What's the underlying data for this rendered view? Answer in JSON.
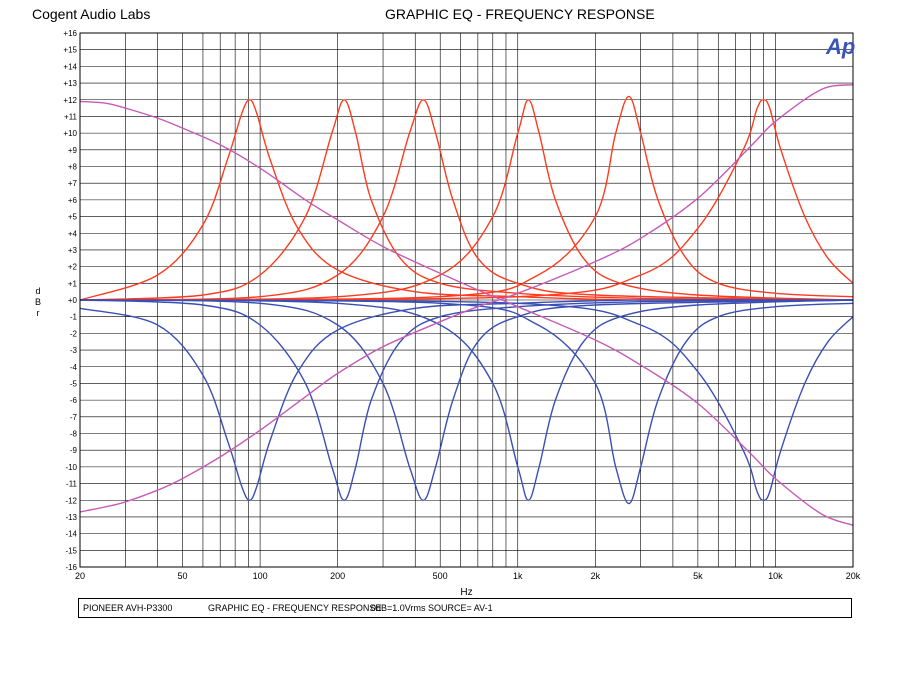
{
  "header": {
    "brand": "Cogent Audio Labs",
    "title": "GRAPHIC EQ  -  FREQUENCY RESPONSE",
    "logo_text": "Ap"
  },
  "footer": {
    "model": "PIONEER AVH-P3300",
    "test": "GRAPHIC EQ - FREQUENCY RESPONSE",
    "reference": "0dB=1.0Vrms",
    "source": "SOURCE= AV-1"
  },
  "colors": {
    "boost": "#ff3b1f",
    "cut": "#3a4fb5",
    "shelf": "#c85ab8",
    "grid": "#000000",
    "logo": "#3a54b8"
  },
  "chart_data": {
    "type": "line",
    "title": "GRAPHIC EQ  -  FREQUENCY RESPONSE",
    "xlabel": "Hz",
    "ylabel": "dBr",
    "x_scale": "log",
    "xlim": [
      20,
      20000
    ],
    "ylim": [
      -16,
      16
    ],
    "x_tick_labels": [
      {
        "value": 20,
        "label": "20"
      },
      {
        "value": 50,
        "label": "50"
      },
      {
        "value": 100,
        "label": "100"
      },
      {
        "value": 200,
        "label": "200"
      },
      {
        "value": 500,
        "label": "500"
      },
      {
        "value": 1000,
        "label": "1k"
      },
      {
        "value": 2000,
        "label": "2k"
      },
      {
        "value": 5000,
        "label": "5k"
      },
      {
        "value": 10000,
        "label": "10k"
      },
      {
        "value": 20000,
        "label": "20k"
      }
    ],
    "y_tick_labels": [
      "+16",
      "+15",
      "+14",
      "+13",
      "+12",
      "+11",
      "+10",
      "+9",
      "+8",
      "+7",
      "+6",
      "+5",
      "+4",
      "+3",
      "+2",
      "+1",
      "+0",
      "-1",
      "-2",
      "-3",
      "-4",
      "-5",
      "-6",
      "-7",
      "-8",
      "-9",
      "-10",
      "-11",
      "-12",
      "-13",
      "-14",
      "-15",
      "-16"
    ],
    "grid": true,
    "legend": "none",
    "series": [
      {
        "color": "boost",
        "x": [
          20,
          40,
          60,
          75,
          85,
          91,
          97,
          110,
          140,
          200,
          400,
          1000,
          3000,
          20000
        ],
        "y": [
          0,
          1.5,
          4.5,
          8.5,
          11.2,
          12,
          11.2,
          8.3,
          4.3,
          1.8,
          0.5,
          0.2,
          0,
          0
        ]
      },
      {
        "color": "boost",
        "x": [
          20,
          60,
          100,
          150,
          190,
          212,
          235,
          270,
          350,
          500,
          1000,
          3000,
          20000
        ],
        "y": [
          0,
          0.3,
          1.5,
          5,
          10,
          12,
          10,
          6,
          2.5,
          1,
          0.4,
          0.1,
          0
        ]
      },
      {
        "color": "boost",
        "x": [
          20,
          100,
          200,
          300,
          380,
          430,
          480,
          560,
          700,
          1000,
          2000,
          20000
        ],
        "y": [
          0,
          0.2,
          1.5,
          5,
          10,
          12,
          10,
          6,
          2.5,
          1,
          0.3,
          0
        ]
      },
      {
        "color": "boost",
        "x": [
          20,
          200,
          500,
          800,
          1000,
          1100,
          1210,
          1400,
          1800,
          2500,
          5000,
          20000
        ],
        "y": [
          0,
          0.2,
          1.5,
          5,
          10,
          12,
          10,
          6,
          2.5,
          1,
          0.3,
          0
        ]
      },
      {
        "color": "boost",
        "x": [
          20,
          500,
          1200,
          2000,
          2400,
          2700,
          3000,
          3500,
          4500,
          6000,
          10000,
          20000
        ],
        "y": [
          0,
          0.2,
          1.5,
          5,
          10,
          12.2,
          10,
          6,
          2.5,
          1,
          0.4,
          0.2
        ]
      },
      {
        "color": "boost",
        "x": [
          20,
          1000,
          3000,
          5000,
          7500,
          8500,
          9000,
          9500,
          10500,
          13000,
          16000,
          20000
        ],
        "y": [
          0,
          0.2,
          1.5,
          4.3,
          9,
          11.5,
          12,
          11.5,
          9,
          5,
          2.5,
          1
        ]
      },
      {
        "color": "cut",
        "x": [
          20,
          40,
          60,
          75,
          85,
          91,
          97,
          110,
          140,
          200,
          400,
          1000,
          3000,
          20000
        ],
        "y": [
          -0.5,
          -1.5,
          -4.5,
          -8.5,
          -11.2,
          -12,
          -11.2,
          -8.3,
          -4.3,
          -1.8,
          -0.5,
          -0.2,
          0,
          0
        ]
      },
      {
        "color": "cut",
        "x": [
          20,
          60,
          100,
          150,
          190,
          212,
          235,
          270,
          350,
          500,
          1000,
          3000,
          20000
        ],
        "y": [
          0,
          -0.3,
          -1.5,
          -5,
          -10,
          -12,
          -10,
          -6,
          -2.5,
          -1,
          -0.4,
          -0.1,
          0
        ]
      },
      {
        "color": "cut",
        "x": [
          20,
          100,
          200,
          300,
          380,
          430,
          480,
          560,
          700,
          1000,
          2000,
          20000
        ],
        "y": [
          0,
          -0.2,
          -1.5,
          -5,
          -10,
          -12,
          -10,
          -6,
          -2.5,
          -1,
          -0.3,
          0
        ]
      },
      {
        "color": "cut",
        "x": [
          20,
          200,
          500,
          800,
          1000,
          1100,
          1210,
          1400,
          1800,
          2500,
          5000,
          20000
        ],
        "y": [
          0,
          -0.2,
          -1.5,
          -5,
          -10,
          -12,
          -10,
          -6,
          -2.5,
          -1,
          -0.3,
          0
        ]
      },
      {
        "color": "cut",
        "x": [
          20,
          500,
          1200,
          2000,
          2400,
          2700,
          3000,
          3500,
          4500,
          6000,
          10000,
          20000
        ],
        "y": [
          0,
          -0.2,
          -1.5,
          -5,
          -10,
          -12.2,
          -10,
          -6,
          -2.5,
          -1,
          -0.4,
          -0.2
        ]
      },
      {
        "color": "cut",
        "x": [
          20,
          1000,
          3000,
          5000,
          7500,
          8500,
          9000,
          9500,
          10500,
          13000,
          16000,
          20000
        ],
        "y": [
          0,
          -0.2,
          -1.5,
          -4.3,
          -9,
          -11.5,
          -12,
          -11.5,
          -9,
          -5,
          -2.5,
          -1
        ]
      },
      {
        "color": "shelf",
        "x": [
          20,
          25,
          30,
          40,
          50,
          70,
          100,
          150,
          200,
          300,
          500,
          700,
          1000,
          2000,
          3000,
          5000,
          8000,
          10000,
          15000,
          20000
        ],
        "y": [
          11.9,
          11.8,
          11.5,
          10.9,
          10.3,
          9.3,
          7.9,
          6,
          4.8,
          3.2,
          1.6,
          0.6,
          -0.4,
          -2.4,
          -3.9,
          -6.2,
          -9.2,
          -10.7,
          -12.8,
          -13.5
        ]
      },
      {
        "color": "shelf",
        "x": [
          20,
          25,
          30,
          40,
          50,
          70,
          100,
          150,
          200,
          300,
          500,
          700,
          1000,
          2000,
          3000,
          5000,
          8000,
          10000,
          15000,
          20000
        ],
        "y": [
          -12.7,
          -12.4,
          -12.1,
          -11.4,
          -10.7,
          -9.4,
          -7.8,
          -5.8,
          -4.4,
          -2.8,
          -1.3,
          -0.4,
          0.4,
          2.3,
          3.7,
          6.1,
          9.2,
          10.7,
          12.6,
          12.9
        ]
      }
    ]
  }
}
